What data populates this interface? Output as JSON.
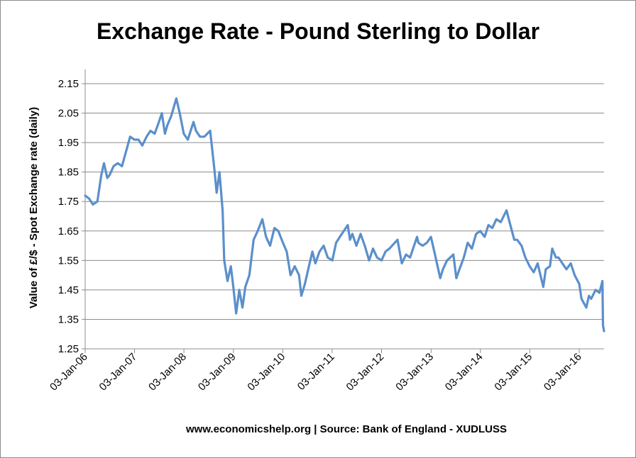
{
  "chart_data": {
    "type": "line",
    "title": "Exchange Rate - Pound Sterling to Dollar",
    "xlabel": "",
    "ylabel": "Value of £/$ - Spot Exchange rate (daily)",
    "ylim": [
      1.25,
      2.15
    ],
    "yticks": [
      "1.25",
      "1.35",
      "1.45",
      "1.55",
      "1.65",
      "1.75",
      "1.85",
      "1.95",
      "2.05",
      "2.15"
    ],
    "xticks": [
      "03-Jan-06",
      "03-Jan-07",
      "03-Jan-08",
      "03-Jan-09",
      "03-Jan-10",
      "03-Jan-11",
      "03-Jan-12",
      "03-Jan-13",
      "03-Jan-14",
      "03-Jan-15",
      "03-Jan-16"
    ],
    "x_range": [
      "2006-01-03",
      "2016-07-05"
    ],
    "grid": true,
    "line_color": "#5b8fcb",
    "series": [
      {
        "values": [
          [
            "2006-01-03",
            1.77
          ],
          [
            "2006-02-01",
            1.76
          ],
          [
            "2006-03-01",
            1.74
          ],
          [
            "2006-04-03",
            1.75
          ],
          [
            "2006-05-02",
            1.84
          ],
          [
            "2006-05-22",
            1.88
          ],
          [
            "2006-06-15",
            1.83
          ],
          [
            "2006-07-03",
            1.84
          ],
          [
            "2006-08-01",
            1.87
          ],
          [
            "2006-09-01",
            1.88
          ],
          [
            "2006-10-02",
            1.87
          ],
          [
            "2006-11-01",
            1.92
          ],
          [
            "2006-12-01",
            1.97
          ],
          [
            "2007-01-02",
            1.96
          ],
          [
            "2007-02-01",
            1.96
          ],
          [
            "2007-03-01",
            1.94
          ],
          [
            "2007-04-02",
            1.97
          ],
          [
            "2007-05-01",
            1.99
          ],
          [
            "2007-06-01",
            1.98
          ],
          [
            "2007-07-02",
            2.02
          ],
          [
            "2007-07-24",
            2.05
          ],
          [
            "2007-08-16",
            1.98
          ],
          [
            "2007-09-03",
            2.01
          ],
          [
            "2007-10-01",
            2.04
          ],
          [
            "2007-11-08",
            2.1
          ],
          [
            "2007-12-03",
            2.05
          ],
          [
            "2008-01-02",
            1.98
          ],
          [
            "2008-02-01",
            1.96
          ],
          [
            "2008-03-14",
            2.02
          ],
          [
            "2008-04-01",
            1.99
          ],
          [
            "2008-05-01",
            1.97
          ],
          [
            "2008-06-02",
            1.97
          ],
          [
            "2008-07-15",
            1.99
          ],
          [
            "2008-08-15",
            1.86
          ],
          [
            "2008-09-01",
            1.78
          ],
          [
            "2008-09-22",
            1.85
          ],
          [
            "2008-10-15",
            1.72
          ],
          [
            "2008-10-27",
            1.55
          ],
          [
            "2008-11-20",
            1.48
          ],
          [
            "2008-12-15",
            1.53
          ],
          [
            "2009-01-02",
            1.46
          ],
          [
            "2009-01-23",
            1.37
          ],
          [
            "2009-02-15",
            1.45
          ],
          [
            "2009-03-11",
            1.39
          ],
          [
            "2009-04-01",
            1.46
          ],
          [
            "2009-05-01",
            1.5
          ],
          [
            "2009-06-01",
            1.62
          ],
          [
            "2009-07-01",
            1.65
          ],
          [
            "2009-08-05",
            1.69
          ],
          [
            "2009-09-01",
            1.63
          ],
          [
            "2009-10-01",
            1.6
          ],
          [
            "2009-11-02",
            1.66
          ],
          [
            "2009-12-01",
            1.65
          ],
          [
            "2010-01-04",
            1.61
          ],
          [
            "2010-02-01",
            1.58
          ],
          [
            "2010-03-01",
            1.5
          ],
          [
            "2010-04-01",
            1.53
          ],
          [
            "2010-05-03",
            1.5
          ],
          [
            "2010-05-20",
            1.43
          ],
          [
            "2010-06-15",
            1.47
          ],
          [
            "2010-07-15",
            1.53
          ],
          [
            "2010-08-10",
            1.58
          ],
          [
            "2010-09-01",
            1.54
          ],
          [
            "2010-10-01",
            1.58
          ],
          [
            "2010-11-01",
            1.6
          ],
          [
            "2010-12-01",
            1.56
          ],
          [
            "2011-01-04",
            1.55
          ],
          [
            "2011-02-01",
            1.61
          ],
          [
            "2011-03-01",
            1.63
          ],
          [
            "2011-04-28",
            1.67
          ],
          [
            "2011-05-15",
            1.62
          ],
          [
            "2011-06-01",
            1.64
          ],
          [
            "2011-07-01",
            1.6
          ],
          [
            "2011-08-01",
            1.64
          ],
          [
            "2011-09-01",
            1.6
          ],
          [
            "2011-10-03",
            1.55
          ],
          [
            "2011-11-01",
            1.59
          ],
          [
            "2011-12-01",
            1.56
          ],
          [
            "2012-01-03",
            1.55
          ],
          [
            "2012-02-01",
            1.58
          ],
          [
            "2012-03-01",
            1.59
          ],
          [
            "2012-04-30",
            1.62
          ],
          [
            "2012-06-01",
            1.54
          ],
          [
            "2012-07-02",
            1.57
          ],
          [
            "2012-08-01",
            1.56
          ],
          [
            "2012-09-21",
            1.63
          ],
          [
            "2012-10-01",
            1.61
          ],
          [
            "2012-11-01",
            1.6
          ],
          [
            "2012-12-03",
            1.61
          ],
          [
            "2013-01-02",
            1.63
          ],
          [
            "2013-02-01",
            1.57
          ],
          [
            "2013-03-12",
            1.49
          ],
          [
            "2013-04-01",
            1.52
          ],
          [
            "2013-05-01",
            1.55
          ],
          [
            "2013-06-17",
            1.57
          ],
          [
            "2013-07-09",
            1.49
          ],
          [
            "2013-08-01",
            1.52
          ],
          [
            "2013-09-02",
            1.56
          ],
          [
            "2013-10-01",
            1.61
          ],
          [
            "2013-11-01",
            1.59
          ],
          [
            "2013-12-02",
            1.64
          ],
          [
            "2014-01-02",
            1.65
          ],
          [
            "2014-02-03",
            1.63
          ],
          [
            "2014-03-03",
            1.67
          ],
          [
            "2014-04-01",
            1.66
          ],
          [
            "2014-05-01",
            1.69
          ],
          [
            "2014-06-02",
            1.68
          ],
          [
            "2014-07-15",
            1.72
          ],
          [
            "2014-08-01",
            1.69
          ],
          [
            "2014-09-10",
            1.62
          ],
          [
            "2014-10-01",
            1.62
          ],
          [
            "2014-11-03",
            1.6
          ],
          [
            "2014-12-01",
            1.56
          ],
          [
            "2015-01-02",
            1.53
          ],
          [
            "2015-02-01",
            1.51
          ],
          [
            "2015-03-02",
            1.54
          ],
          [
            "2015-04-13",
            1.46
          ],
          [
            "2015-05-01",
            1.52
          ],
          [
            "2015-06-01",
            1.53
          ],
          [
            "2015-06-18",
            1.59
          ],
          [
            "2015-07-15",
            1.56
          ],
          [
            "2015-08-03",
            1.56
          ],
          [
            "2015-09-01",
            1.54
          ],
          [
            "2015-10-01",
            1.52
          ],
          [
            "2015-11-02",
            1.54
          ],
          [
            "2015-12-01",
            1.5
          ],
          [
            "2016-01-04",
            1.47
          ],
          [
            "2016-01-20",
            1.42
          ],
          [
            "2016-02-25",
            1.39
          ],
          [
            "2016-03-15",
            1.43
          ],
          [
            "2016-04-01",
            1.42
          ],
          [
            "2016-05-03",
            1.45
          ],
          [
            "2016-06-01",
            1.44
          ],
          [
            "2016-06-23",
            1.48
          ],
          [
            "2016-06-27",
            1.33
          ],
          [
            "2016-07-05",
            1.31
          ]
        ]
      }
    ]
  },
  "footer": "www.economicshelp.org | Source: Bank of England - XUDLUSS"
}
